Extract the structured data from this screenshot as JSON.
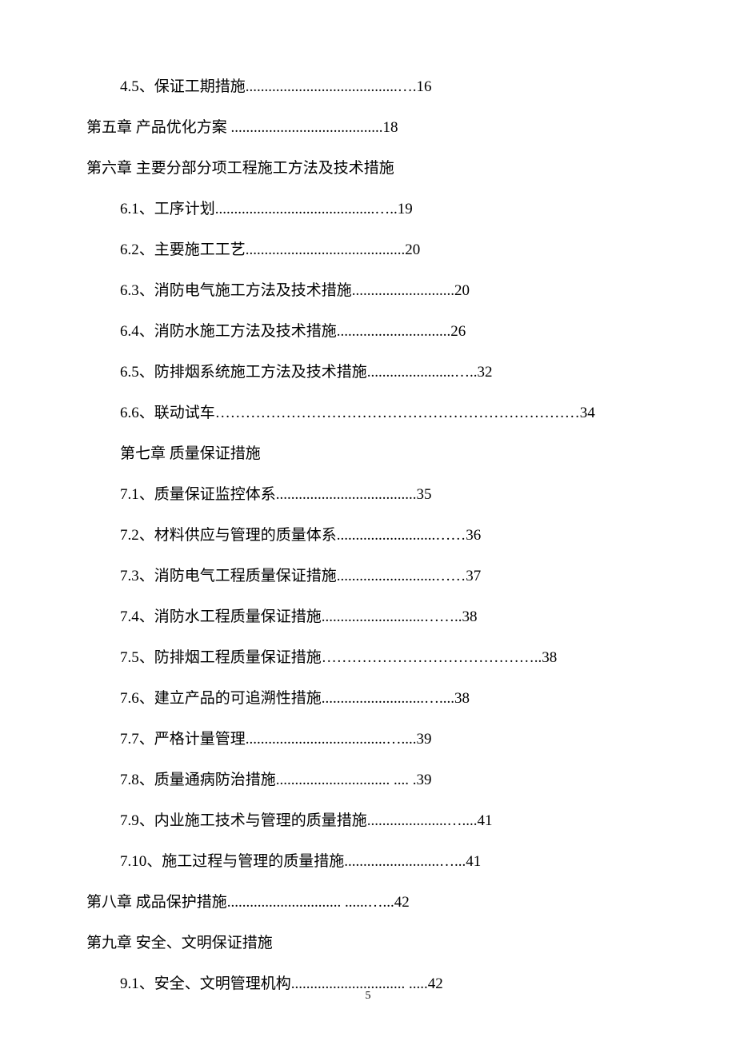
{
  "entries": [
    {
      "indent": 1,
      "text": "4.5、保证工期措施........................................….16"
    },
    {
      "indent": 0,
      "text": "第五章   产品优化方案   ........................................18"
    },
    {
      "indent": 0,
      "text": "第六章   主要分部分项工程施工方法及技术措施"
    },
    {
      "indent": 1,
      "text": "6.1、工序计划..........................................…..19"
    },
    {
      "indent": 1,
      "text": "6.2、主要施工工艺..........................................20"
    },
    {
      "indent": 1,
      "text": "6.3、消防电气施工方法及技术措施...........................20"
    },
    {
      "indent": 1,
      "text": "6.4、消防水施工方法及技术措施..............................26"
    },
    {
      "indent": 1,
      "text": "6.5、防排烟系统施工方法及技术措施.......................…..32"
    },
    {
      "indent": 1,
      "text": "6.6、联动试车………………………………………………………………34"
    },
    {
      "indent": 1,
      "text": "第七章   质量保证措施"
    },
    {
      "indent": 1,
      "text": "7.1、质量保证监控体系.....................................35"
    },
    {
      "indent": 1,
      "text": "7.2、材料供应与管理的质量体系..........................……36"
    },
    {
      "indent": 1,
      "text": "7.3、消防电气工程质量保证措施..........................……37"
    },
    {
      "indent": 1,
      "text": "7.4、消防水工程质量保证措施...........................……..38"
    },
    {
      "indent": 1,
      "text": "7.5、防排烟工程质量保证措施……………………………………..38"
    },
    {
      "indent": 1,
      "text": "7.6、建立产品的可追溯性措施...........................…....38"
    },
    {
      "indent": 1,
      "text": "7.7、严格计量管理.....................................…....39"
    },
    {
      "indent": 1,
      "text": "7.8、质量通病防治措施.............................. .... .39"
    },
    {
      "indent": 1,
      "text": "7.9、内业施工技术与管理的质量措施.....................…....41"
    },
    {
      "indent": 1,
      "text": "7.10、施工过程与管理的质量措施.........................…...41"
    },
    {
      "indent": 0,
      "text": "第八章   成品保护措施.............................. ......…...42"
    },
    {
      "indent": 0,
      "text": "第九章   安全、文明保证措施"
    },
    {
      "indent": 1,
      "text": "9.1、安全、文明管理机构.............................. .....42"
    }
  ],
  "page_number": "5"
}
